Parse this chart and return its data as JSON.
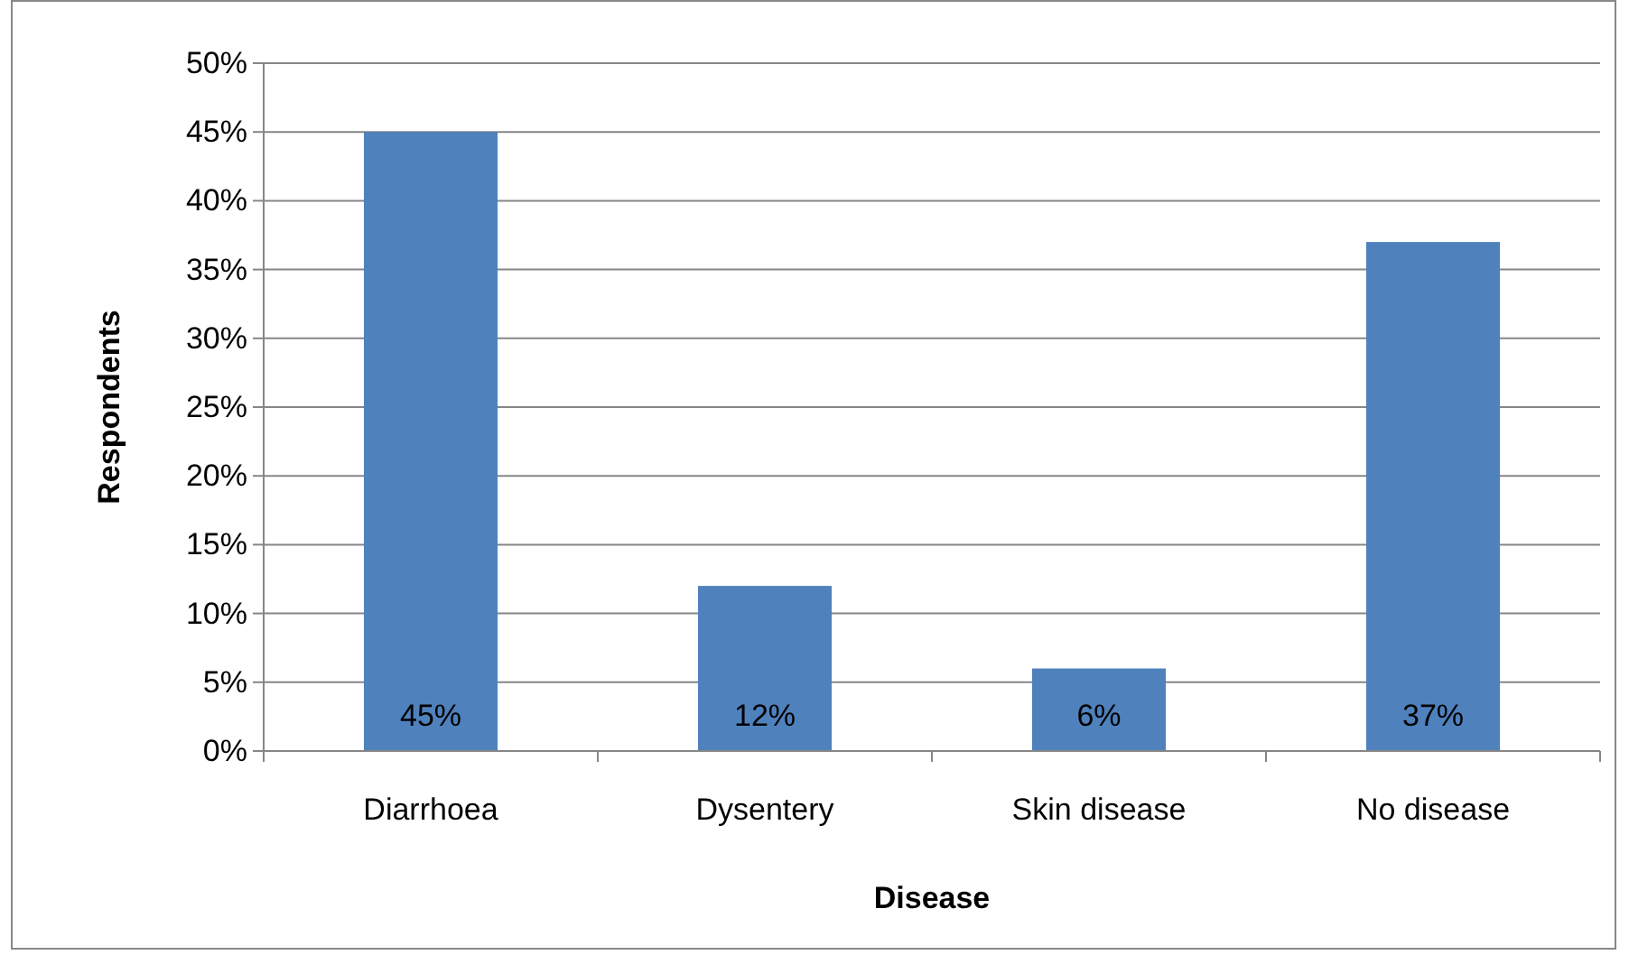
{
  "chart_data": {
    "type": "bar",
    "xlabel": "Disease",
    "ylabel": "Respondents",
    "categories": [
      "Diarrhoea",
      "Dysentery",
      "Skin disease",
      "No disease"
    ],
    "values": [
      45,
      12,
      6,
      37
    ],
    "color": "#4f81bd",
    "value_labels": [
      "45%",
      "12%",
      "6%",
      "37%"
    ],
    "ylim": [
      0,
      50
    ],
    "yticks": [
      {
        "value": 0,
        "label": "0%"
      },
      {
        "value": 5,
        "label": "5%"
      },
      {
        "value": 10,
        "label": "10%"
      },
      {
        "value": 15,
        "label": "15%"
      },
      {
        "value": 20,
        "label": "20%"
      },
      {
        "value": 25,
        "label": "25%"
      },
      {
        "value": 30,
        "label": "30%"
      },
      {
        "value": 35,
        "label": "35%"
      },
      {
        "value": 40,
        "label": "40%"
      },
      {
        "value": 45,
        "label": "45%"
      },
      {
        "value": 50,
        "label": "50%"
      }
    ],
    "grid": "y"
  }
}
